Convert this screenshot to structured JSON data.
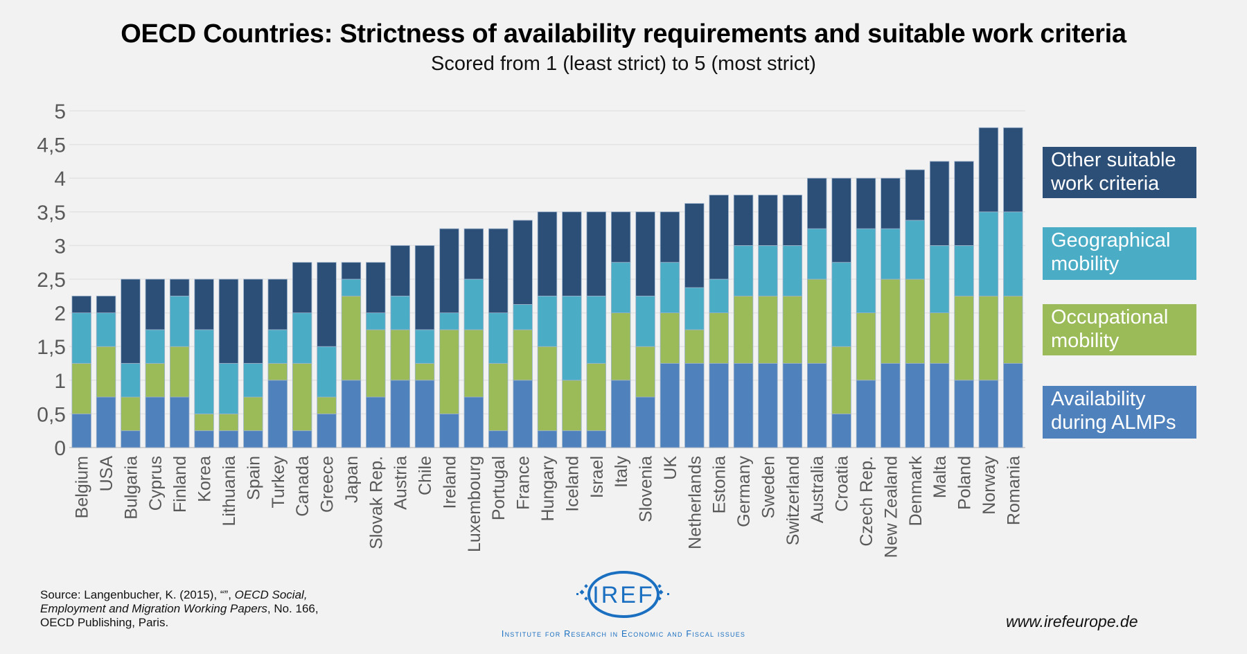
{
  "title": "OECD Countries: Strictness of availability requirements and suitable work criteria",
  "subtitle": "Scored from 1 (least strict) to 5 (most strict)",
  "chart_data": {
    "type": "bar",
    "stacked": true,
    "title": "OECD Countries: Strictness of availability requirements and suitable work criteria",
    "subtitle": "Scored from 1 (least strict) to 5 (most strict)",
    "xlabel": "",
    "ylabel": "",
    "ylim": [
      0,
      5
    ],
    "yticks": [
      0,
      0.5,
      1,
      1.5,
      2,
      2.5,
      3,
      3.5,
      4,
      4.5,
      5
    ],
    "ytick_labels": [
      "0",
      "0,5",
      "1",
      "1,5",
      "2",
      "2,5",
      "3",
      "3,5",
      "4",
      "4,5",
      "5"
    ],
    "grid": true,
    "legend_position": "right",
    "categories": [
      "Belgium",
      "USA",
      "Bulgaria",
      "Cyprus",
      "Finland",
      "Korea",
      "Lithuania",
      "Spain",
      "Turkey",
      "Canada",
      "Greece",
      "Japan",
      "Slovak Rep.",
      "Austria",
      "Chile",
      "Ireland",
      "Luxembourg",
      "Portugal",
      "France",
      "Hungary",
      "Iceland",
      "Israel",
      "Italy",
      "Slovenia",
      "UK",
      "Netherlands",
      "Estonia",
      "Germany",
      "Sweden",
      "Switzerland",
      "Australia",
      "Croatia",
      "Czech Rep.",
      "New Zealand",
      "Denmark",
      "Malta",
      "Poland",
      "Norway",
      "Romania"
    ],
    "series": [
      {
        "name": "Availability during ALMPs",
        "color": "#4f81bd",
        "values": [
          0.5,
          0.75,
          0.25,
          0.75,
          0.75,
          0.25,
          0.25,
          0.25,
          1,
          0.25,
          0.5,
          1,
          0.75,
          1,
          1,
          0.5,
          0.75,
          0.25,
          1,
          0.25,
          0.25,
          0.25,
          1,
          0.75,
          1.25,
          1.25,
          1.25,
          1.25,
          1.25,
          1.25,
          1.25,
          0.5,
          1,
          1.25,
          1.25,
          1.25,
          1,
          1,
          1.25
        ]
      },
      {
        "name": "Occupational mobility",
        "color": "#9bbb59",
        "values": [
          0.75,
          0.75,
          0.5,
          0.5,
          0.75,
          0.25,
          0.25,
          0.5,
          0.25,
          1,
          0.25,
          1.25,
          1,
          0.75,
          0.25,
          1.25,
          1,
          1,
          0.75,
          1.25,
          0.75,
          1,
          1,
          0.75,
          0.75,
          0.5,
          0.75,
          1,
          1,
          1,
          1.25,
          1,
          1,
          1.25,
          1.25,
          0.75,
          1.25,
          1.25,
          1
        ]
      },
      {
        "name": "Geographical mobility",
        "color": "#4bacc6",
        "values": [
          0.75,
          0.5,
          0.5,
          0.5,
          0.75,
          1.25,
          0.75,
          0.5,
          0.5,
          0.75,
          0.75,
          0.25,
          0.25,
          0.5,
          0.5,
          0.25,
          0.75,
          0.75,
          0.375,
          0.75,
          1.25,
          1,
          0.75,
          0.75,
          0.75,
          0.625,
          0.5,
          0.75,
          0.75,
          0.75,
          0.75,
          1.25,
          1.25,
          0.75,
          0.875,
          1,
          0.75,
          1.25,
          1.25
        ]
      },
      {
        "name": "Other suitable work criteria",
        "color": "#2c4f78",
        "values": [
          0.25,
          0.25,
          1.25,
          0.75,
          0.25,
          0.75,
          1.25,
          1.25,
          0.75,
          0.75,
          1.25,
          0.25,
          0.75,
          0.75,
          1.25,
          1.25,
          0.75,
          1.25,
          1.25,
          1.25,
          1.25,
          1.25,
          0.75,
          1.25,
          0.75,
          1.25,
          1.25,
          0.75,
          0.75,
          0.75,
          0.75,
          1.25,
          0.75,
          0.75,
          0.75,
          1.25,
          1.25,
          1.25,
          1.25
        ]
      }
    ]
  },
  "legend": [
    {
      "line1": "Other suitable",
      "line2": "work criteria",
      "color": "#2c4f78"
    },
    {
      "line1": "Geographical",
      "line2": "mobility",
      "color": "#4bacc6"
    },
    {
      "line1": "Occupational",
      "line2": "mobility",
      "color": "#9bbb59"
    },
    {
      "line1": "Availability",
      "line2": "during ALMPs",
      "color": "#4f81bd"
    }
  ],
  "footer": {
    "source_prefix": "Source: Langenbucher, K. (2015), “”, ",
    "source_italic": "OECD Social, Employment and Migration Working Papers",
    "source_suffix": ", No. 166, OECD Publishing, Paris.",
    "logo_text": "IREF",
    "institute": "Institute for Research in Economic and Fiscal issues",
    "website": "www.irefeurope.de",
    "brand_color": "#1a6fc0"
  }
}
